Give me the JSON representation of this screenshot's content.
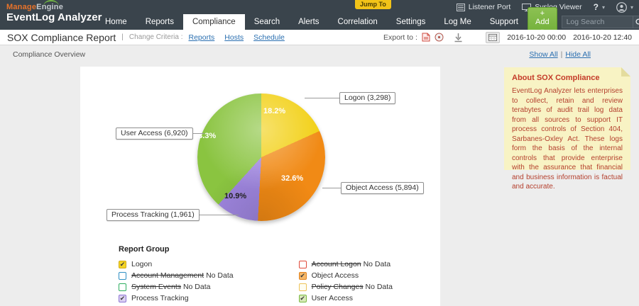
{
  "header": {
    "brand": {
      "manage": "Manage",
      "engine": "Engine",
      "product": "EventLog Analyzer"
    },
    "jump_to": "Jump To",
    "top_right": {
      "listener": "Listener Port",
      "syslog": "Syslog Viewer",
      "help": "?"
    },
    "nav": [
      {
        "label": "Home",
        "active": false
      },
      {
        "label": "Reports",
        "active": false
      },
      {
        "label": "Compliance",
        "active": true
      },
      {
        "label": "Search",
        "active": false
      },
      {
        "label": "Alerts",
        "active": false
      },
      {
        "label": "Correlation",
        "active": false
      },
      {
        "label": "Settings",
        "active": false
      },
      {
        "label": "Log Me",
        "active": false
      },
      {
        "label": "Support",
        "active": false
      }
    ],
    "add_button": "+ Add",
    "search_placeholder": "Log Search"
  },
  "toolbar": {
    "title": "SOX Compliance Report",
    "pipe": "|",
    "change_criteria": "Change Criteria :",
    "links": {
      "reports": "Reports",
      "hosts": "Hosts",
      "schedule": "Schedule"
    },
    "export_label": "Export to :",
    "date_from": "2016-10-20 00:00",
    "date_to": "2016-10-20 12:40"
  },
  "overview": {
    "title": "Compliance Overview",
    "show_all": "Show All",
    "hide_all": "Hide All",
    "sep": "|"
  },
  "chart_data": {
    "type": "pie",
    "title": "Compliance Overview",
    "legend_position": "bottom",
    "slices": [
      {
        "label": "Logon",
        "value": 3298,
        "display": "Logon (3,298)",
        "pct": "18.2%",
        "color": "#f2d013",
        "pct_color": "#ffffff"
      },
      {
        "label": "Object Access",
        "value": 5894,
        "display": "Object Access (5,894)",
        "pct": "32.6%",
        "color": "#f18a15",
        "pct_color": "#ffffff"
      },
      {
        "label": "Process Tracking",
        "value": 1961,
        "display": "Process Tracking (1,961)",
        "pct": "10.9%",
        "color": "#9e85de",
        "pct_color": "#222222"
      },
      {
        "label": "User Access",
        "value": 6920,
        "display": "User Access (6,920)",
        "pct": "38.3%",
        "color": "#8ac440",
        "pct_color": "#ffffff"
      }
    ]
  },
  "legend": {
    "title": "Report Group",
    "no_data_suffix": " No Data",
    "columns": {
      "left": [
        {
          "label": "Logon",
          "checked": true,
          "no_data": false,
          "border": "#d2ab10",
          "fill": "#f4d527"
        },
        {
          "label": "Account Management",
          "checked": false,
          "no_data": true,
          "border": "#2f8fc4",
          "fill": "#ffffff"
        },
        {
          "label": "System Events",
          "checked": false,
          "no_data": true,
          "border": "#2eae5f",
          "fill": "#ffffff"
        },
        {
          "label": "Process Tracking",
          "checked": true,
          "no_data": false,
          "border": "#8d75d3",
          "fill": "#dcd1f2"
        }
      ],
      "right": [
        {
          "label": "Account Logon",
          "checked": false,
          "no_data": true,
          "border": "#e04a3a",
          "fill": "#ffffff"
        },
        {
          "label": "Object Access",
          "checked": true,
          "no_data": false,
          "border": "#e2821d",
          "fill": "#f5b768"
        },
        {
          "label": "Policy Changes",
          "checked": false,
          "no_data": true,
          "border": "#eec35a",
          "fill": "#fffdf0"
        },
        {
          "label": "User Access",
          "checked": true,
          "no_data": false,
          "border": "#7ab840",
          "fill": "#d8eab9"
        }
      ]
    }
  },
  "about": {
    "title": "About SOX Compliance",
    "body": "EventLog Analyzer lets enterprises to collect, retain and review terabytes of audit trail log data from all sources to support IT process controls of Section 404, Sarbanes-Oxley Act. These logs form the basis of the internal controls that provide enterprise with the assurance that financial and business information is factual and accurate."
  }
}
